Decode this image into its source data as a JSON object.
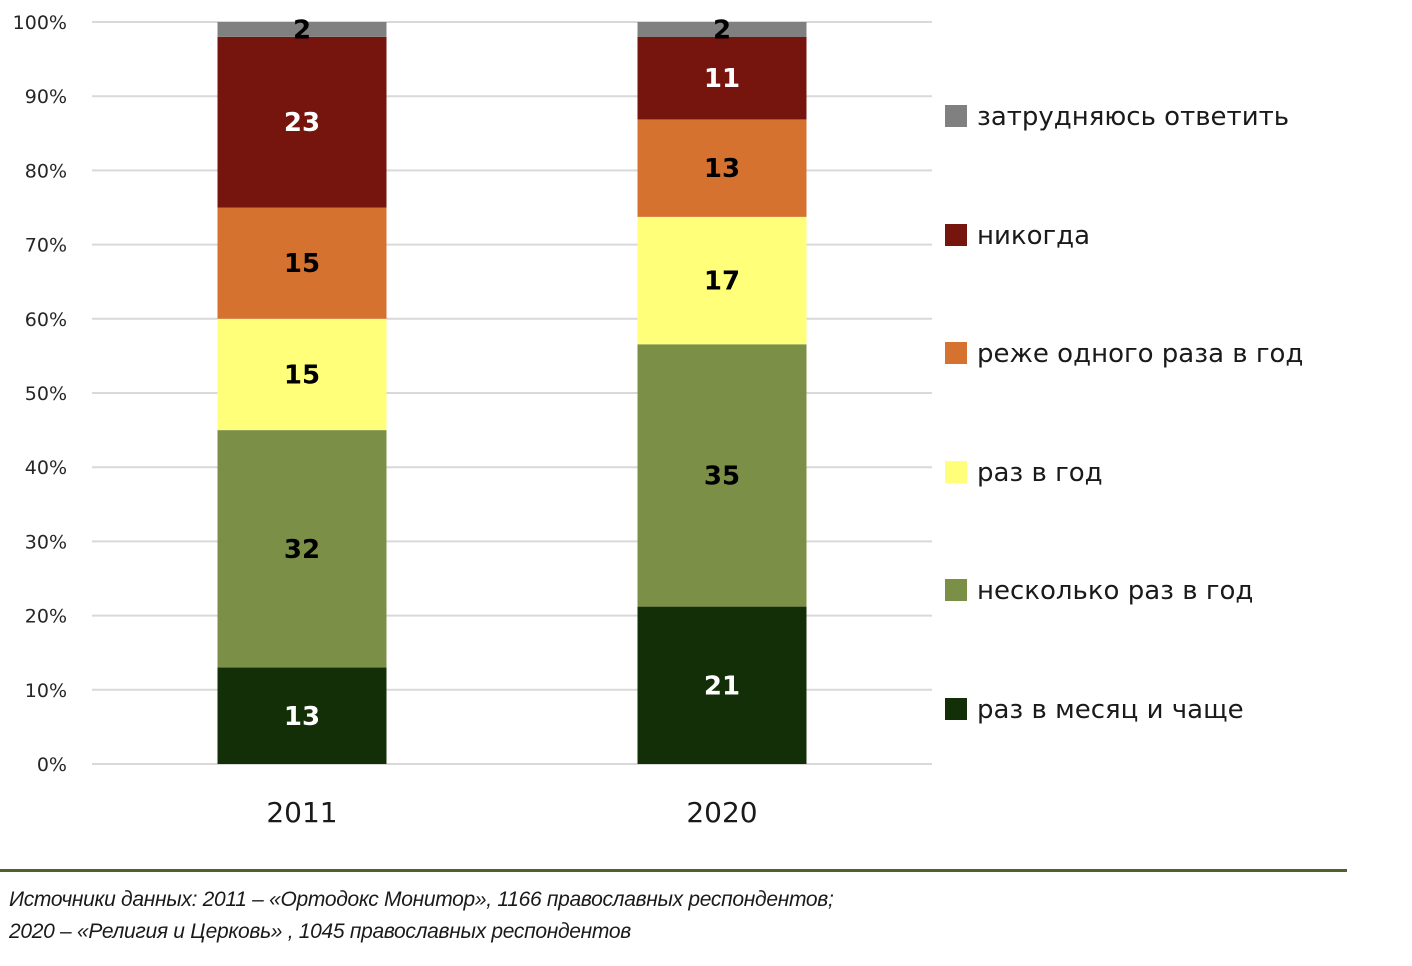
{
  "chart_data": {
    "type": "bar",
    "stacked": true,
    "percent_stacked": true,
    "title": "",
    "xlabel": "",
    "ylabel": "",
    "ylim": [
      0,
      100
    ],
    "y_ticks": [
      "0%",
      "10%",
      "20%",
      "30%",
      "40%",
      "50%",
      "60%",
      "70%",
      "80%",
      "90%",
      "100%"
    ],
    "grid": true,
    "legend_position": "right",
    "categories": [
      "2011",
      "2020"
    ],
    "series": [
      {
        "name": "раз в месяц и чаще",
        "color": "#132f08",
        "label_color": "#ffffff",
        "values": [
          13,
          21
        ]
      },
      {
        "name": "несколько раз в год",
        "color": "#7b8f47",
        "label_color": "#000000",
        "values": [
          32,
          35
        ]
      },
      {
        "name": "раз в год",
        "color": "#ffff7a",
        "label_color": "#000000",
        "values": [
          15,
          17
        ]
      },
      {
        "name": "реже одного раза в год",
        "color": "#d6722f",
        "label_color": "#000000",
        "values": [
          15,
          13
        ]
      },
      {
        "name": "никогда",
        "color": "#76140e",
        "label_color": "#ffffff",
        "values": [
          23,
          11
        ]
      },
      {
        "name": "затрудняюсь ответить",
        "color": "#808080",
        "label_color": "#000000",
        "values": [
          2,
          2
        ]
      }
    ],
    "legend_order": [
      "затрудняюсь ответить",
      "никогда",
      "реже одного раза в год",
      "раз в год",
      "несколько раз в год",
      "раз в месяц и чаще"
    ]
  },
  "footer": {
    "line1": "Источники данных: 2011 – «Ортодокс Монитор», 1166 православных респондентов;",
    "line2": "2020 – «Религия и Церковь» , 1045 православных респондентов"
  }
}
